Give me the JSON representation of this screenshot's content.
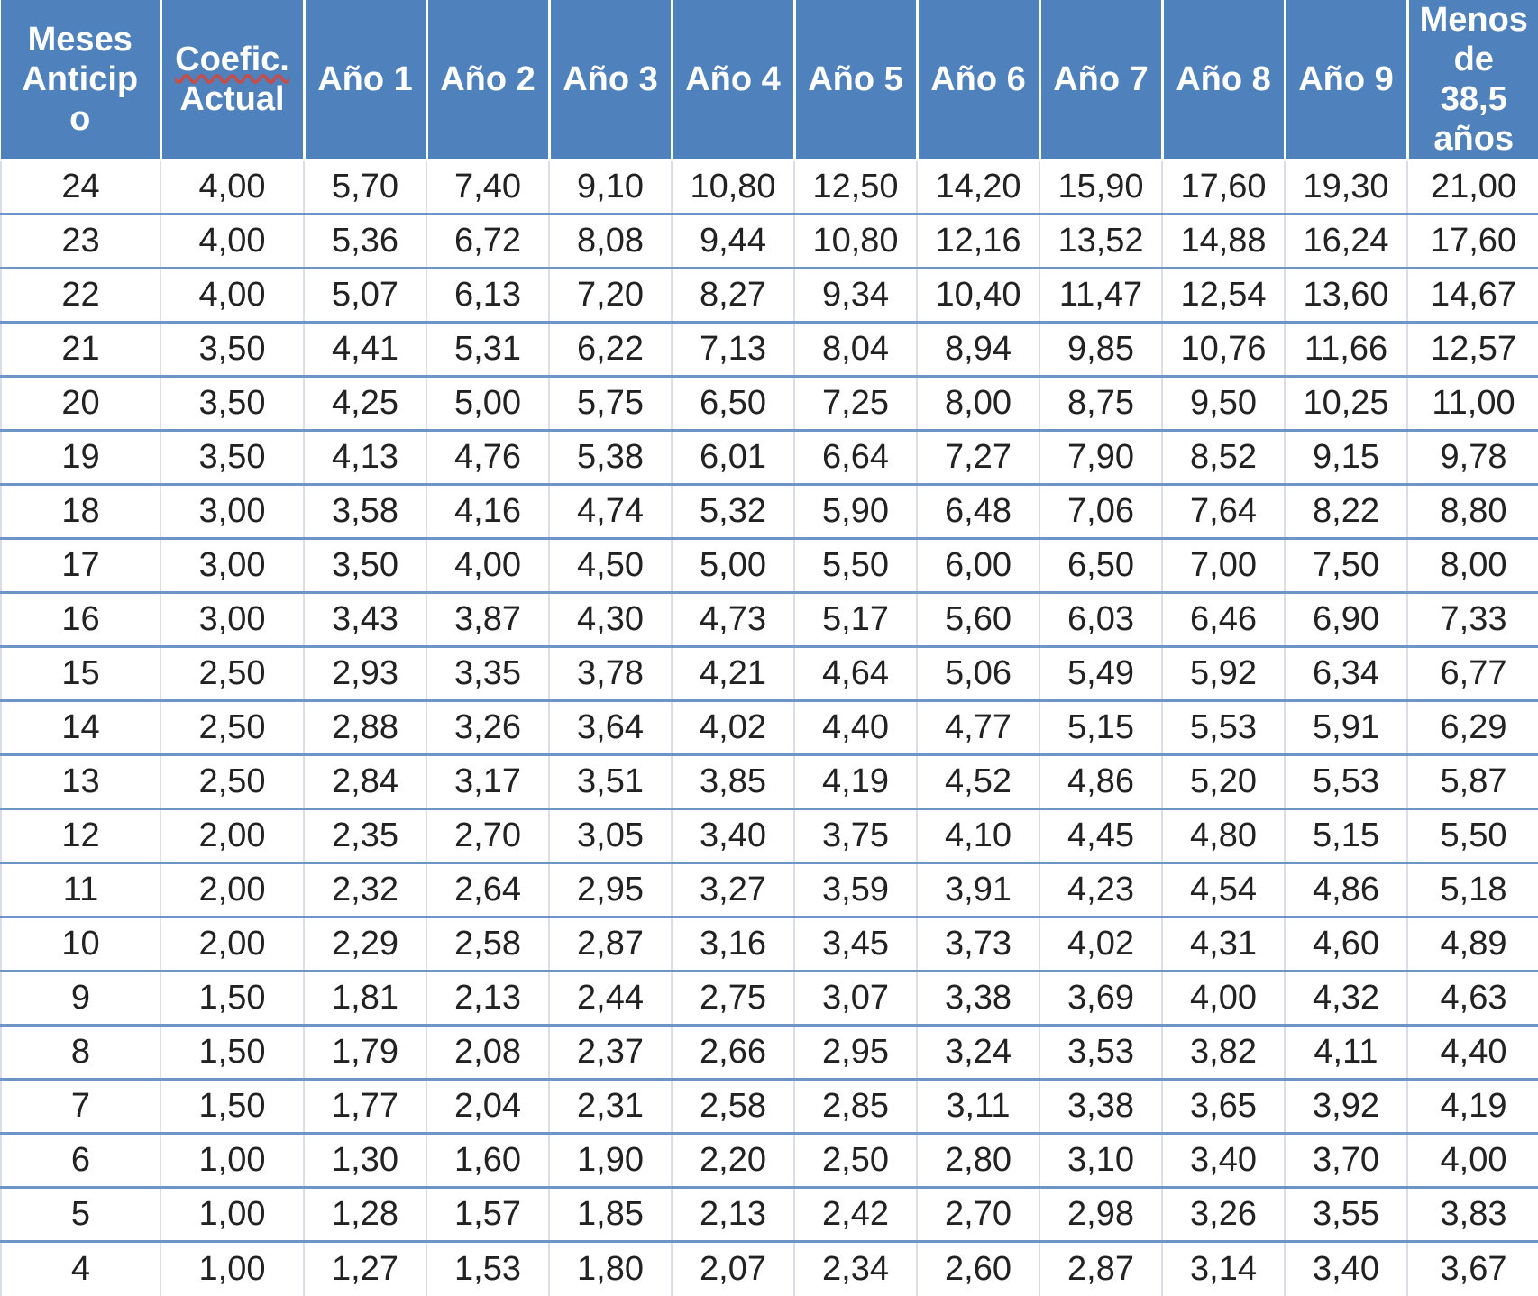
{
  "headers": {
    "meses": [
      "Meses",
      "Anticip",
      "o"
    ],
    "coef": [
      "Coefic.",
      "Actual"
    ],
    "anos": [
      "Año 1",
      "Año 2",
      "Año 3",
      "Año 4",
      "Año 5",
      "Año 6",
      "Año 7",
      "Año 8",
      "Año 9"
    ],
    "menos": [
      "Menos",
      "de",
      "38,5",
      "años"
    ]
  },
  "rows": [
    [
      "24",
      "4,00",
      "5,70",
      "7,40",
      "9,10",
      "10,80",
      "12,50",
      "14,20",
      "15,90",
      "17,60",
      "19,30",
      "21,00"
    ],
    [
      "23",
      "4,00",
      "5,36",
      "6,72",
      "8,08",
      "9,44",
      "10,80",
      "12,16",
      "13,52",
      "14,88",
      "16,24",
      "17,60"
    ],
    [
      "22",
      "4,00",
      "5,07",
      "6,13",
      "7,20",
      "8,27",
      "9,34",
      "10,40",
      "11,47",
      "12,54",
      "13,60",
      "14,67"
    ],
    [
      "21",
      "3,50",
      "4,41",
      "5,31",
      "6,22",
      "7,13",
      "8,04",
      "8,94",
      "9,85",
      "10,76",
      "11,66",
      "12,57"
    ],
    [
      "20",
      "3,50",
      "4,25",
      "5,00",
      "5,75",
      "6,50",
      "7,25",
      "8,00",
      "8,75",
      "9,50",
      "10,25",
      "11,00"
    ],
    [
      "19",
      "3,50",
      "4,13",
      "4,76",
      "5,38",
      "6,01",
      "6,64",
      "7,27",
      "7,90",
      "8,52",
      "9,15",
      "9,78"
    ],
    [
      "18",
      "3,00",
      "3,58",
      "4,16",
      "4,74",
      "5,32",
      "5,90",
      "6,48",
      "7,06",
      "7,64",
      "8,22",
      "8,80"
    ],
    [
      "17",
      "3,00",
      "3,50",
      "4,00",
      "4,50",
      "5,00",
      "5,50",
      "6,00",
      "6,50",
      "7,00",
      "7,50",
      "8,00"
    ],
    [
      "16",
      "3,00",
      "3,43",
      "3,87",
      "4,30",
      "4,73",
      "5,17",
      "5,60",
      "6,03",
      "6,46",
      "6,90",
      "7,33"
    ],
    [
      "15",
      "2,50",
      "2,93",
      "3,35",
      "3,78",
      "4,21",
      "4,64",
      "5,06",
      "5,49",
      "5,92",
      "6,34",
      "6,77"
    ],
    [
      "14",
      "2,50",
      "2,88",
      "3,26",
      "3,64",
      "4,02",
      "4,40",
      "4,77",
      "5,15",
      "5,53",
      "5,91",
      "6,29"
    ],
    [
      "13",
      "2,50",
      "2,84",
      "3,17",
      "3,51",
      "3,85",
      "4,19",
      "4,52",
      "4,86",
      "5,20",
      "5,53",
      "5,87"
    ],
    [
      "12",
      "2,00",
      "2,35",
      "2,70",
      "3,05",
      "3,40",
      "3,75",
      "4,10",
      "4,45",
      "4,80",
      "5,15",
      "5,50"
    ],
    [
      "11",
      "2,00",
      "2,32",
      "2,64",
      "2,95",
      "3,27",
      "3,59",
      "3,91",
      "4,23",
      "4,54",
      "4,86",
      "5,18"
    ],
    [
      "10",
      "2,00",
      "2,29",
      "2,58",
      "2,87",
      "3,16",
      "3,45",
      "3,73",
      "4,02",
      "4,31",
      "4,60",
      "4,89"
    ],
    [
      "9",
      "1,50",
      "1,81",
      "2,13",
      "2,44",
      "2,75",
      "3,07",
      "3,38",
      "3,69",
      "4,00",
      "4,32",
      "4,63"
    ],
    [
      "8",
      "1,50",
      "1,79",
      "2,08",
      "2,37",
      "2,66",
      "2,95",
      "3,24",
      "3,53",
      "3,82",
      "4,11",
      "4,40"
    ],
    [
      "7",
      "1,50",
      "1,77",
      "2,04",
      "2,31",
      "2,58",
      "2,85",
      "3,11",
      "3,38",
      "3,65",
      "3,92",
      "4,19"
    ],
    [
      "6",
      "1,00",
      "1,30",
      "1,60",
      "1,90",
      "2,20",
      "2,50",
      "2,80",
      "3,10",
      "3,40",
      "3,70",
      "4,00"
    ],
    [
      "5",
      "1,00",
      "1,28",
      "1,57",
      "1,85",
      "2,13",
      "2,42",
      "2,70",
      "2,98",
      "3,26",
      "3,55",
      "3,83"
    ],
    [
      "4",
      "1,00",
      "1,27",
      "1,53",
      "1,80",
      "2,07",
      "2,34",
      "2,60",
      "2,87",
      "3,14",
      "3,40",
      "3,67"
    ]
  ],
  "colors": {
    "header_bg": "#4f81bd",
    "header_text": "#ffffff",
    "row_separator": "#6f94c6"
  }
}
